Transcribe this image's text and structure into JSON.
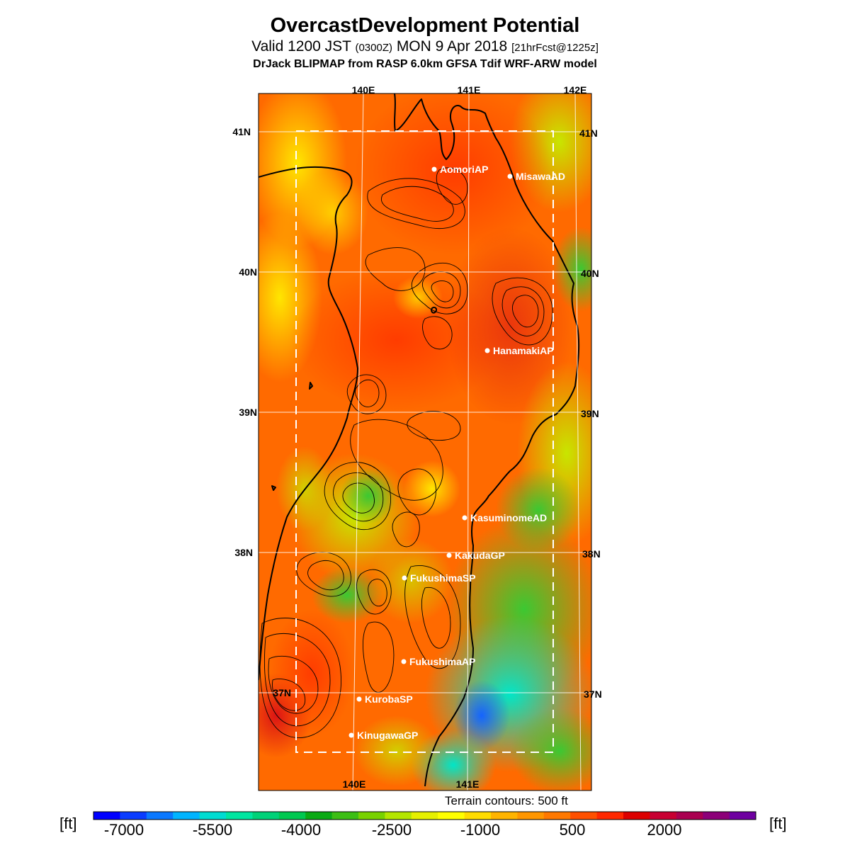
{
  "header": {
    "title": "OvercastDevelopment Potential",
    "valid_main": "Valid 1200 JST ",
    "valid_utc": "(0300Z)",
    "valid_date": " MON 9 Apr 2018 ",
    "forecast": "[21hrFcst@1225z]",
    "model": "DrJack BLIPMAP from RASP 6.0km GFSA Tdif WRF-ARW model"
  },
  "axes": {
    "top_lon": [
      "140E",
      "141E",
      "142E"
    ],
    "bottom_lon": [
      "140E",
      "141E"
    ],
    "left_lat": [
      "41N",
      "40N",
      "39N",
      "38N",
      "37N"
    ],
    "right_lat": [
      "41N",
      "40N",
      "39N",
      "38N",
      "37N"
    ]
  },
  "points": [
    {
      "name": "AomoriAP"
    },
    {
      "name": "MisawaAD"
    },
    {
      "name": "HanamakiAP"
    },
    {
      "name": "KasuminomeAD"
    },
    {
      "name": "KakudaGP"
    },
    {
      "name": "FukushimaSP"
    },
    {
      "name": "FukushimaAP"
    },
    {
      "name": "KurobaSP"
    },
    {
      "name": "KinugawaGP"
    }
  ],
  "footer": {
    "terrain_note": "Terrain contours: 500 ft",
    "unit_left": "[ft]",
    "unit_right": "[ft]"
  },
  "colorbar": {
    "labels": [
      "-7000",
      "-5500",
      "-4000",
      "-2500",
      "-1000",
      "500",
      "2000"
    ],
    "colors": [
      "#0000ff",
      "#0a3cff",
      "#0a78ff",
      "#00b4ff",
      "#00dcd2",
      "#00e6a0",
      "#00d278",
      "#00c850",
      "#0aaa14",
      "#3cbe14",
      "#78d200",
      "#b4e600",
      "#e6f000",
      "#ffff00",
      "#ffdc00",
      "#ffb400",
      "#ff9600",
      "#ff7800",
      "#ff5000",
      "#ff2800",
      "#dc0000",
      "#c80032",
      "#aa0050",
      "#8c0078",
      "#6e00a0"
    ]
  }
}
